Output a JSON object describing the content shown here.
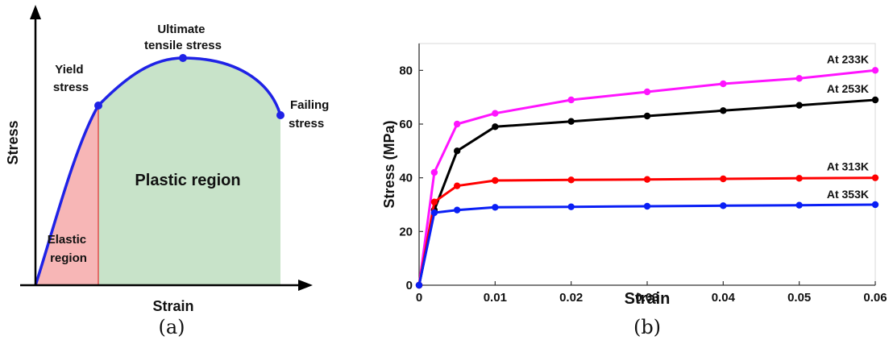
{
  "captions": {
    "a": "(a)",
    "b": "(b)"
  },
  "chart_data": [
    {
      "type": "diagram",
      "xlabel": "Strain",
      "ylabel": "Stress",
      "points": [
        {
          "key": "yield",
          "label_lines": [
            "Yield",
            "stress"
          ]
        },
        {
          "key": "ultimate",
          "label_lines": [
            "Ultimate",
            "tensile stress"
          ]
        },
        {
          "key": "failing",
          "label_lines": [
            "Failing",
            "stress"
          ]
        }
      ],
      "regions": [
        {
          "key": "elastic",
          "label_lines": [
            "Elastic",
            "region"
          ],
          "color": "#f7b6b6"
        },
        {
          "key": "plastic",
          "label_lines": [
            "Plastic region"
          ],
          "color": "#c8e3c9"
        }
      ],
      "curve_color": "#1f22e6"
    },
    {
      "type": "line",
      "xlabel": "Strain",
      "ylabel": "Stress (MPa)",
      "xlim": [
        0,
        0.06
      ],
      "ylim": [
        0,
        90
      ],
      "xticks": [
        "0",
        "0.01",
        "0.02",
        "0.03",
        "0.04",
        "0.05",
        "0.06"
      ],
      "yticks": [
        "0",
        "20",
        "40",
        "60",
        "80"
      ],
      "x": [
        0,
        0.002,
        0.005,
        0.01,
        0.02,
        0.03,
        0.04,
        0.05,
        0.06
      ],
      "series": [
        {
          "name": "At 233K",
          "color": "#ff14ff",
          "values": [
            0,
            42,
            60,
            64,
            69,
            72,
            75,
            77,
            80
          ]
        },
        {
          "name": "At 253K",
          "color": "#000000",
          "values": [
            0,
            28,
            50,
            59,
            61,
            63,
            65,
            67,
            69
          ]
        },
        {
          "name": "At 313K",
          "color": "#ff0000",
          "values": [
            0,
            31,
            37,
            39,
            39.2,
            39.4,
            39.6,
            39.8,
            40
          ]
        },
        {
          "name": "At 353K",
          "color": "#0a1ff5",
          "values": [
            0,
            27,
            28,
            29,
            29.2,
            29.4,
            29.6,
            29.8,
            30
          ]
        }
      ],
      "grid": false
    }
  ]
}
